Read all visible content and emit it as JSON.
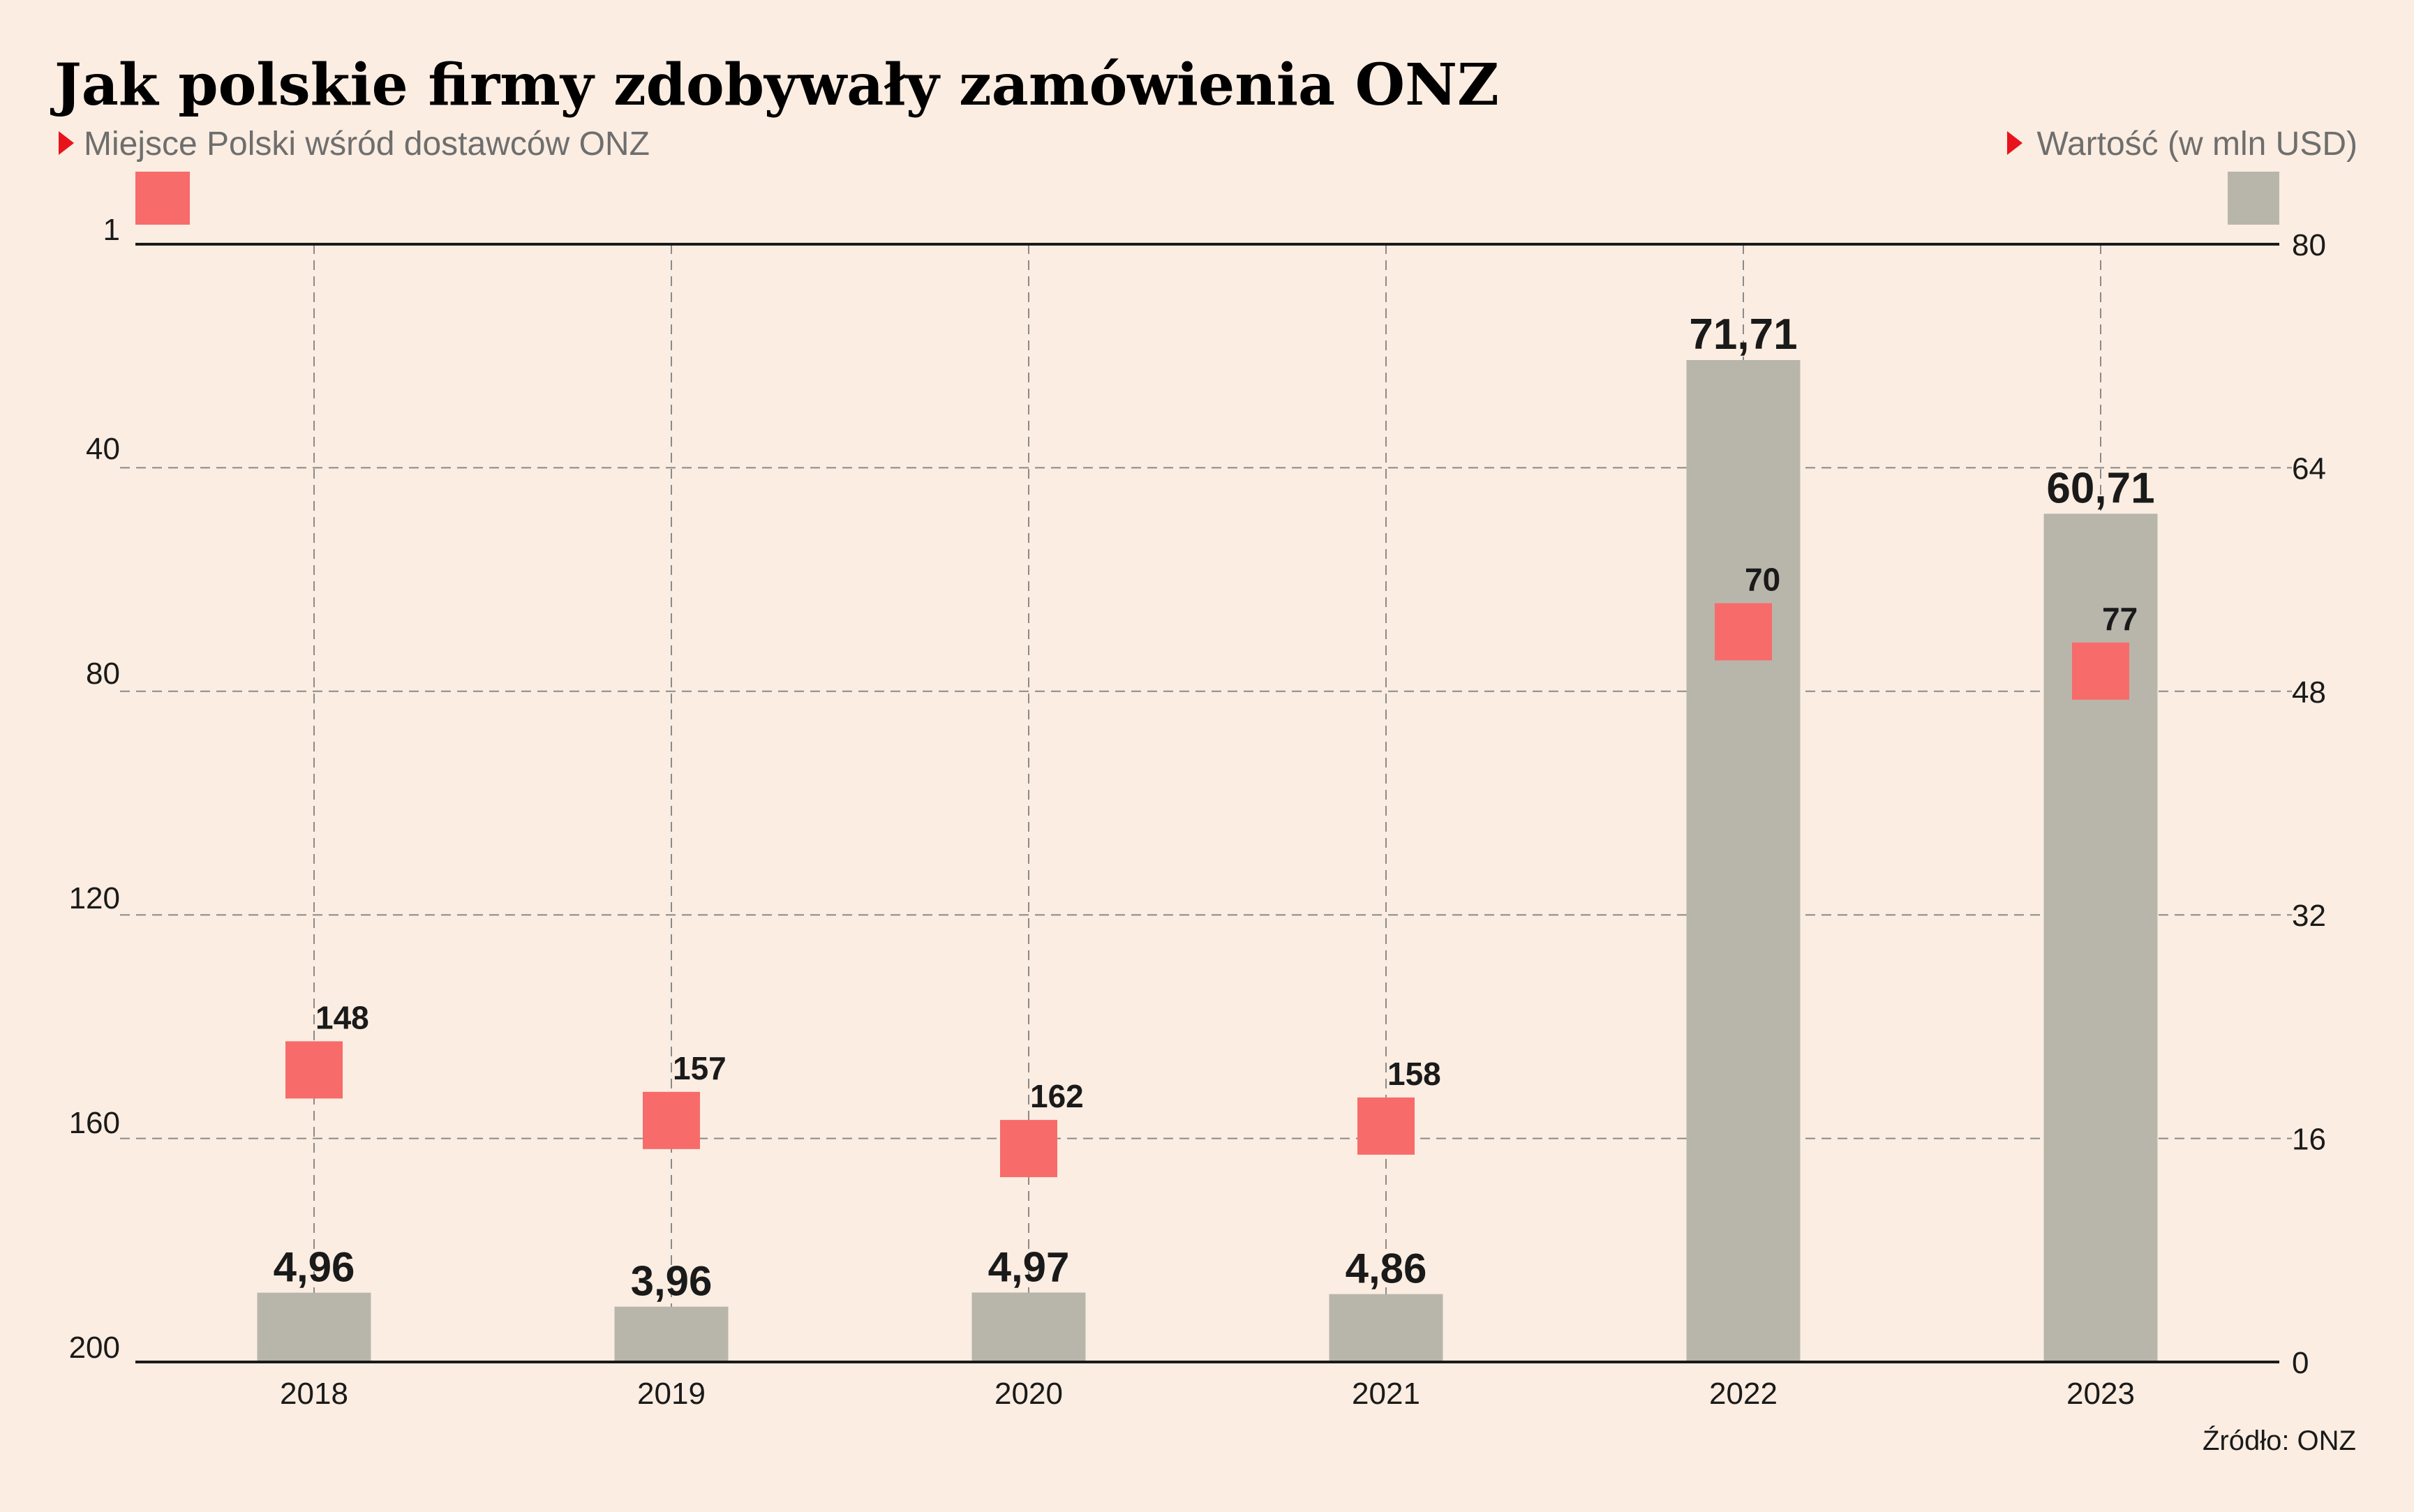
{
  "title": "Jak polskie firmy zdobywały zamówienia ONZ",
  "legend": {
    "rank_label": "Miejsce Polski wśród dostawców ONZ",
    "value_label": "Wartość (w mln USD)"
  },
  "source": "Źródło: ONZ",
  "colors": {
    "background": "#fbede1",
    "bar": "#b8b6ab",
    "marker": "#f76b6a",
    "legend_arrow": "#e8141c",
    "grid": "#8a8a8a",
    "axis": "#1a1a1a"
  },
  "chart_data": {
    "type": "bar",
    "categories": [
      "2018",
      "2019",
      "2020",
      "2021",
      "2022",
      "2023"
    ],
    "series": [
      {
        "name": "Wartość (w mln USD)",
        "type": "bar",
        "axis": "right",
        "values": [
          4.96,
          3.96,
          4.97,
          4.86,
          71.71,
          60.71
        ],
        "labels": [
          "4,96",
          "3,96",
          "4,97",
          "4,86",
          "71,71",
          "60,71"
        ]
      },
      {
        "name": "Miejsce Polski wśród dostawców ONZ",
        "type": "scatter",
        "axis": "left",
        "values": [
          148,
          157,
          162,
          158,
          70,
          77
        ],
        "labels": [
          "148",
          "157",
          "162",
          "158",
          "70",
          "77"
        ]
      }
    ],
    "left_axis": {
      "ticks": [
        1,
        40,
        80,
        120,
        160,
        200
      ],
      "tick_labels": [
        "1",
        "40",
        "80",
        "120",
        "160",
        "200"
      ],
      "range": [
        1,
        200
      ],
      "inverted": true
    },
    "right_axis": {
      "ticks": [
        0,
        16,
        32,
        48,
        64,
        80
      ],
      "tick_labels": [
        "0",
        "16",
        "32",
        "48",
        "64",
        "80"
      ],
      "range": [
        0,
        80
      ]
    },
    "grid": true,
    "legend_position": "top"
  }
}
